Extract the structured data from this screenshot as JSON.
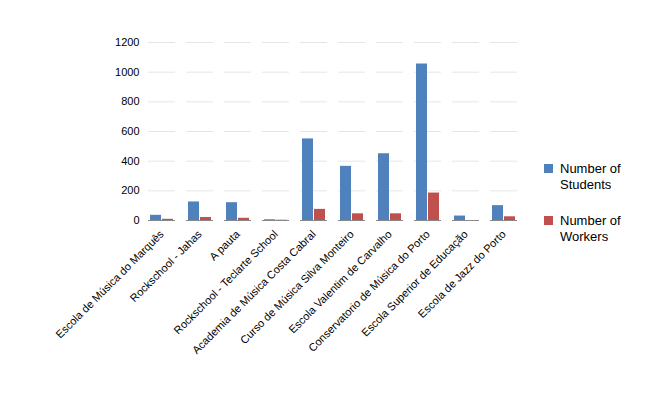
{
  "chart_data": {
    "type": "bar",
    "categories": [
      "Escola de Música do Marquês",
      "Rockschool - Jahas",
      "A pauta",
      "Rockschool - Teclarte School",
      "Academia de Música Costa Cabral",
      "Curso de Música Silva Monteiro",
      "Escola Valentim de Carvalho",
      "Conservatorio de Música do Porto",
      "Escola Superior de Educação",
      "Escola de Jazz do Porto"
    ],
    "series": [
      {
        "name": "Number of Students",
        "color": "#4f81bd",
        "values": [
          35,
          125,
          120,
          5,
          550,
          365,
          450,
          1055,
          30,
          100
        ]
      },
      {
        "name": "Number of Workers",
        "color": "#c0504d",
        "values": [
          8,
          20,
          15,
          2,
          75,
          45,
          45,
          185,
          0,
          25
        ]
      }
    ],
    "ylim": [
      0,
      1200
    ],
    "yticks": [
      0,
      200,
      400,
      600,
      800,
      1000,
      1200
    ],
    "grid": true,
    "legend": "right"
  }
}
